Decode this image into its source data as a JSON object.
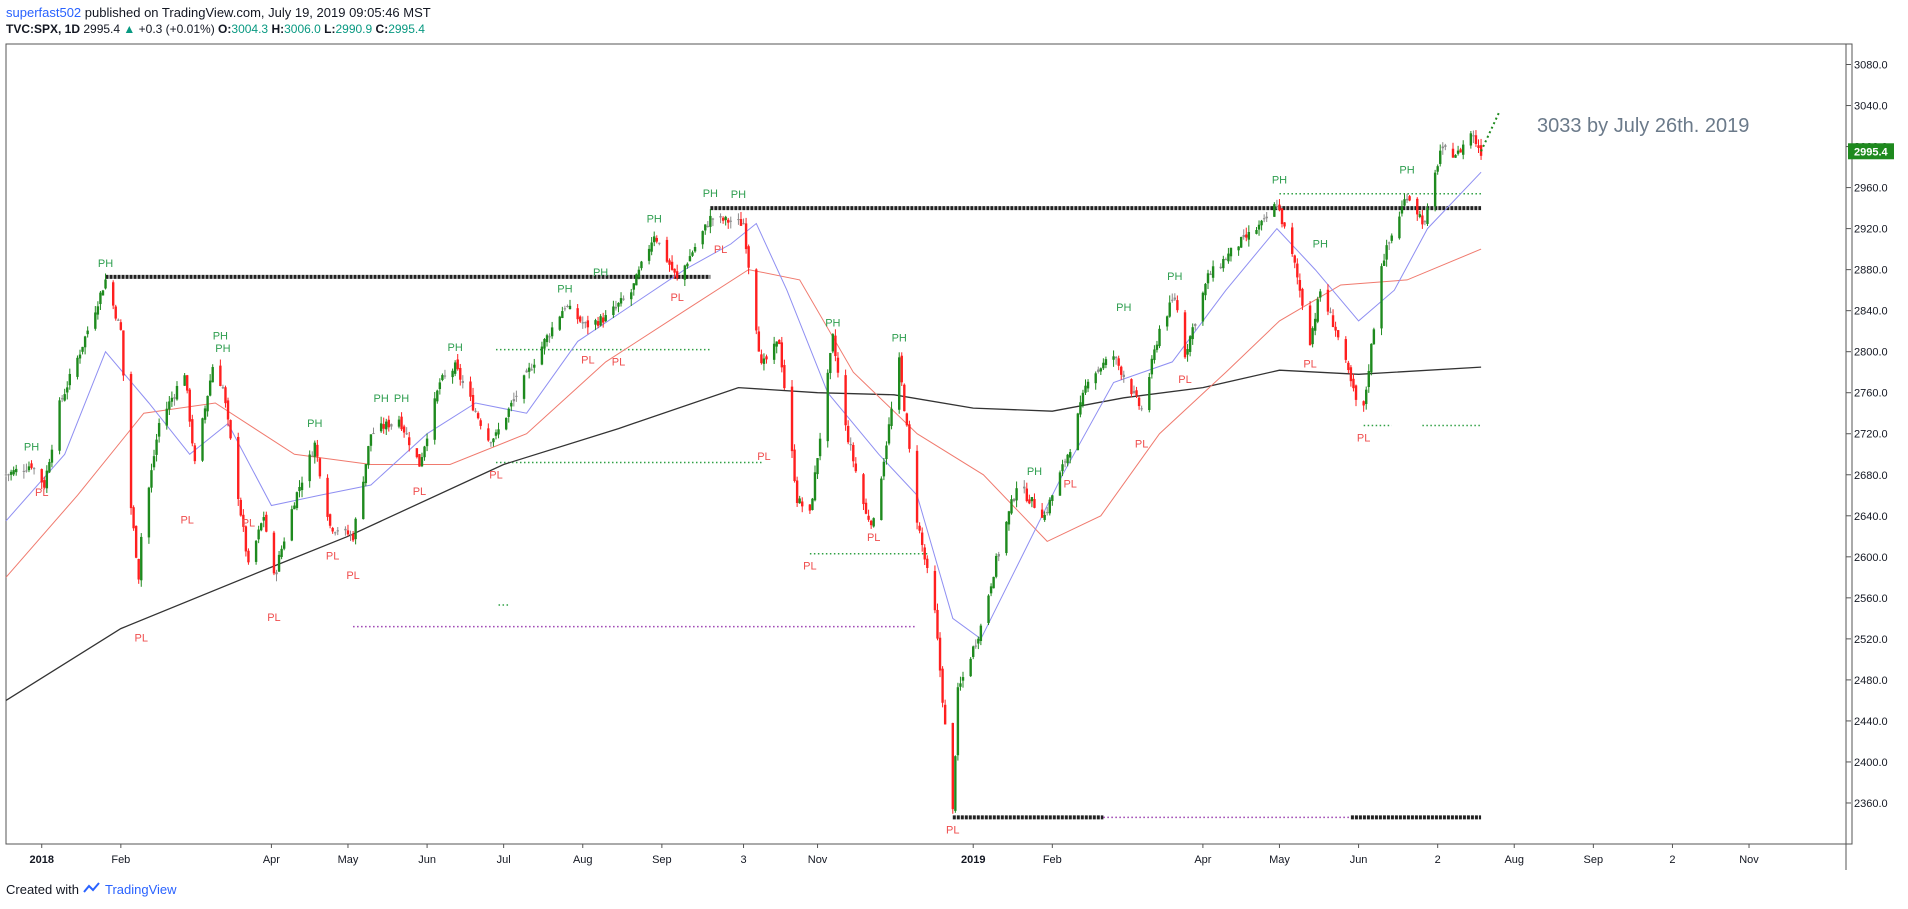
{
  "header": {
    "author": "superfast502",
    "published_text": "published on TradingView.com, July 19, 2019 09:05:46 MST",
    "symbol": "TVC:SPX, 1D",
    "last": "2995.4",
    "change": "+0.3 (+0.01%)",
    "o_label": "O:",
    "o_value": "3004.3",
    "h_label": "H:",
    "h_value": "3006.0",
    "l_label": "L:",
    "l_value": "2990.9",
    "c_label": "C:",
    "c_value": "2995.4"
  },
  "footer": {
    "created_with": "Created with",
    "brand": "TradingView"
  },
  "chart_data": {
    "type": "candlestick",
    "title": "",
    "ylim": [
      2320,
      3100
    ],
    "y_ticks": [
      3080.0,
      3040.0,
      3000.0,
      2960.0,
      2920.0,
      2880.0,
      2840.0,
      2800.0,
      2760.0,
      2720.0,
      2680.0,
      2640.0,
      2600.0,
      2560.0,
      2520.0,
      2480.0,
      2440.0,
      2400.0,
      2360.0
    ],
    "x_ticks": [
      {
        "label": "2018",
        "date": "2018-01-01"
      },
      {
        "label": "Feb",
        "date": "2018-02-01"
      },
      {
        "label": "Apr",
        "date": "2018-04-01"
      },
      {
        "label": "May",
        "date": "2018-05-01"
      },
      {
        "label": "Jun",
        "date": "2018-06-01"
      },
      {
        "label": "Jul",
        "date": "2018-07-01"
      },
      {
        "label": "Aug",
        "date": "2018-08-01"
      },
      {
        "label": "Sep",
        "date": "2018-09-01"
      },
      {
        "label": "3",
        "date": "2018-10-03"
      },
      {
        "label": "Nov",
        "date": "2018-11-01"
      },
      {
        "label": "2019",
        "date": "2019-01-01"
      },
      {
        "label": "Feb",
        "date": "2019-02-01"
      },
      {
        "label": "Apr",
        "date": "2019-04-01"
      },
      {
        "label": "May",
        "date": "2019-05-01"
      },
      {
        "label": "Jun",
        "date": "2019-06-01"
      },
      {
        "label": "2",
        "date": "2019-07-02"
      },
      {
        "label": "Aug",
        "date": "2019-08-01"
      },
      {
        "label": "Sep",
        "date": "2019-09-01"
      },
      {
        "label": "2",
        "date": "2019-10-02"
      },
      {
        "label": "Nov",
        "date": "2019-11-01"
      }
    ],
    "last_price_label": "2995.4",
    "annotation": "3033 by July 26th. 2019",
    "colors": {
      "up": "#1e8a1e",
      "down": "#ff1f1f",
      "neutral": "#8c8c8c",
      "ma_fast": "#8f8ff2",
      "ma_mid": "#f07a6e",
      "ma_slow": "#333333",
      "ph": "#2e9e4f",
      "pl": "#ef4d4d",
      "last_badge": "#1e8a1e"
    },
    "pivots": [
      {
        "label": "PH",
        "date": "2017-12-28",
        "value": 2694
      },
      {
        "label": "PL",
        "date": "2018-01-01",
        "value": 2675
      },
      {
        "label": "PH",
        "date": "2018-01-26",
        "value": 2873
      },
      {
        "label": "PL",
        "date": "2018-02-09",
        "value": 2533
      },
      {
        "label": "PL",
        "date": "2018-02-27",
        "value": 2648
      },
      {
        "label": "PH",
        "date": "2018-03-12",
        "value": 2802
      },
      {
        "label": "PL",
        "date": "2018-03-23",
        "value": 2645
      },
      {
        "label": "PH",
        "date": "2018-03-13",
        "value": 2790
      },
      {
        "label": "PL",
        "date": "2018-04-02",
        "value": 2553
      },
      {
        "label": "PH",
        "date": "2018-04-18",
        "value": 2717
      },
      {
        "label": "PL",
        "date": "2018-04-25",
        "value": 2613
      },
      {
        "label": "PL",
        "date": "2018-05-03",
        "value": 2594
      },
      {
        "label": "PH",
        "date": "2018-05-14",
        "value": 2741
      },
      {
        "label": "PH",
        "date": "2018-05-22",
        "value": 2741
      },
      {
        "label": "PL",
        "date": "2018-05-29",
        "value": 2676
      },
      {
        "label": "PH",
        "date": "2018-06-12",
        "value": 2791
      },
      {
        "label": "PL",
        "date": "2018-06-28",
        "value": 2692
      },
      {
        "label": "PH",
        "date": "2018-07-25",
        "value": 2848
      },
      {
        "label": "PL",
        "date": "2018-08-03",
        "value": 2804
      },
      {
        "label": "PH",
        "date": "2018-08-08",
        "value": 2864
      },
      {
        "label": "PL",
        "date": "2018-08-15",
        "value": 2802
      },
      {
        "label": "PH",
        "date": "2018-08-29",
        "value": 2916
      },
      {
        "label": "PL",
        "date": "2018-09-07",
        "value": 2865
      },
      {
        "label": "PH",
        "date": "2018-09-20",
        "value": 2941
      },
      {
        "label": "PL",
        "date": "2018-09-24",
        "value": 2912
      },
      {
        "label": "PH",
        "date": "2018-10-01",
        "value": 2940
      },
      {
        "label": "PL",
        "date": "2018-10-11",
        "value": 2710
      },
      {
        "label": "PH",
        "date": "2018-11-07",
        "value": 2815
      },
      {
        "label": "PL",
        "date": "2018-10-29",
        "value": 2603
      },
      {
        "label": "PL",
        "date": "2018-11-23",
        "value": 2631
      },
      {
        "label": "PH",
        "date": "2018-12-03",
        "value": 2800
      },
      {
        "label": "PL",
        "date": "2018-12-24",
        "value": 2346
      },
      {
        "label": "PH",
        "date": "2019-01-25",
        "value": 2670
      },
      {
        "label": "PL",
        "date": "2019-02-08",
        "value": 2683
      },
      {
        "label": "PH",
        "date": "2019-03-01",
        "value": 2830
      },
      {
        "label": "PL",
        "date": "2019-03-08",
        "value": 2722
      },
      {
        "label": "PH",
        "date": "2019-03-21",
        "value": 2860
      },
      {
        "label": "PL",
        "date": "2019-03-25",
        "value": 2785
      },
      {
        "label": "PH",
        "date": "2019-05-01",
        "value": 2954
      },
      {
        "label": "PL",
        "date": "2019-05-13",
        "value": 2800
      },
      {
        "label": "PH",
        "date": "2019-05-17",
        "value": 2892
      },
      {
        "label": "PL",
        "date": "2019-06-03",
        "value": 2728
      },
      {
        "label": "PH",
        "date": "2019-06-20",
        "value": 2964
      }
    ],
    "levels": [
      {
        "from": "2018-01-26",
        "to": "2018-09-20",
        "value": 2873,
        "style": "black-dots"
      },
      {
        "from": "2018-09-20",
        "to": "2019-07-19",
        "value": 2940,
        "style": "black-dots"
      },
      {
        "from": "2018-12-24",
        "to": "2019-02-21",
        "value": 2346,
        "style": "black-dots"
      },
      {
        "from": "2019-05-29",
        "to": "2019-07-19",
        "value": 2346,
        "style": "black-dots"
      },
      {
        "from": "2019-02-21",
        "to": "2019-05-29",
        "value": 2346,
        "style": "purple-dots"
      },
      {
        "from": "2018-05-03",
        "to": "2018-12-10",
        "value": 2532,
        "style": "purple-dots"
      },
      {
        "from": "2018-06-28",
        "to": "2018-09-20",
        "value": 2802,
        "style": "green-dots"
      },
      {
        "from": "2018-06-28",
        "to": "2018-10-11",
        "value": 2692,
        "style": "green-dots"
      },
      {
        "from": "2018-10-29",
        "to": "2018-12-14",
        "value": 2603,
        "style": "green-dots"
      },
      {
        "from": "2019-05-01",
        "to": "2019-07-19",
        "value": 2954,
        "style": "green-dots"
      },
      {
        "from": "2019-06-03",
        "to": "2019-06-14",
        "value": 2728,
        "style": "green-dots"
      },
      {
        "from": "2019-06-26",
        "to": "2019-07-19",
        "value": 2728,
        "style": "green-dots"
      },
      {
        "from": "2018-06-29",
        "to": "2018-07-03",
        "value": 2553,
        "style": "green-dots"
      }
    ],
    "projection": {
      "from": "2019-07-19",
      "to": "2019-07-26",
      "from_value": 2995.4,
      "to_value": 3033
    },
    "price_path": [
      [
        "2017-12-18",
        2680
      ],
      [
        "2017-12-28",
        2690
      ],
      [
        "2018-01-02",
        2670
      ],
      [
        "2018-01-08",
        2748
      ],
      [
        "2018-01-16",
        2800
      ],
      [
        "2018-01-26",
        2870
      ],
      [
        "2018-02-01",
        2820
      ],
      [
        "2018-02-05",
        2648
      ],
      [
        "2018-02-08",
        2581
      ],
      [
        "2018-02-09",
        2620
      ],
      [
        "2018-02-16",
        2730
      ],
      [
        "2018-02-26",
        2780
      ],
      [
        "2018-03-02",
        2690
      ],
      [
        "2018-03-09",
        2786
      ],
      [
        "2018-03-13",
        2765
      ],
      [
        "2018-03-23",
        2590
      ],
      [
        "2018-03-29",
        2640
      ],
      [
        "2018-04-02",
        2580
      ],
      [
        "2018-04-10",
        2655
      ],
      [
        "2018-04-18",
        2710
      ],
      [
        "2018-04-24",
        2630
      ],
      [
        "2018-05-03",
        2620
      ],
      [
        "2018-05-10",
        2720
      ],
      [
        "2018-05-21",
        2735
      ],
      [
        "2018-05-29",
        2690
      ],
      [
        "2018-06-06",
        2770
      ],
      [
        "2018-06-12",
        2785
      ],
      [
        "2018-06-25",
        2715
      ],
      [
        "2018-06-28",
        2718
      ],
      [
        "2018-07-06",
        2758
      ],
      [
        "2018-07-17",
        2810
      ],
      [
        "2018-07-25",
        2845
      ],
      [
        "2018-08-02",
        2825
      ],
      [
        "2018-08-10",
        2833
      ],
      [
        "2018-08-20",
        2858
      ],
      [
        "2018-08-29",
        2915
      ],
      [
        "2018-09-07",
        2870
      ],
      [
        "2018-09-20",
        2930
      ],
      [
        "2018-10-03",
        2925
      ],
      [
        "2018-10-10",
        2785
      ],
      [
        "2018-10-17",
        2810
      ],
      [
        "2018-10-24",
        2656
      ],
      [
        "2018-10-29",
        2641
      ],
      [
        "2018-11-07",
        2813
      ],
      [
        "2018-11-12",
        2726
      ],
      [
        "2018-11-20",
        2641
      ],
      [
        "2018-11-23",
        2633
      ],
      [
        "2018-12-03",
        2790
      ],
      [
        "2018-12-10",
        2637
      ],
      [
        "2018-12-17",
        2545
      ],
      [
        "2018-12-24",
        2351
      ],
      [
        "2018-12-26",
        2468
      ],
      [
        "2019-01-04",
        2532
      ],
      [
        "2019-01-10",
        2596
      ],
      [
        "2019-01-18",
        2670
      ],
      [
        "2019-01-29",
        2640
      ],
      [
        "2019-02-08",
        2707
      ],
      [
        "2019-02-15",
        2775
      ],
      [
        "2019-02-25",
        2796
      ],
      [
        "2019-03-08",
        2743
      ],
      [
        "2019-03-15",
        2822
      ],
      [
        "2019-03-21",
        2854
      ],
      [
        "2019-03-25",
        2798
      ],
      [
        "2019-04-03",
        2873
      ],
      [
        "2019-04-15",
        2905
      ],
      [
        "2019-04-25",
        2926
      ],
      [
        "2019-04-30",
        2945
      ],
      [
        "2019-05-07",
        2884
      ],
      [
        "2019-05-13",
        2811
      ],
      [
        "2019-05-17",
        2859
      ],
      [
        "2019-05-23",
        2822
      ],
      [
        "2019-05-31",
        2752
      ],
      [
        "2019-06-03",
        2744
      ],
      [
        "2019-06-10",
        2886
      ],
      [
        "2019-06-20",
        2954
      ],
      [
        "2019-06-27",
        2924
      ],
      [
        "2019-07-03",
        2996
      ],
      [
        "2019-07-10",
        2993
      ],
      [
        "2019-07-15",
        3014
      ],
      [
        "2019-07-19",
        2995
      ]
    ],
    "ma_fast_path": [
      [
        "2017-12-18",
        2635
      ],
      [
        "2018-01-10",
        2700
      ],
      [
        "2018-01-26",
        2800
      ],
      [
        "2018-02-12",
        2750
      ],
      [
        "2018-02-28",
        2700
      ],
      [
        "2018-03-15",
        2730
      ],
      [
        "2018-04-01",
        2650
      ],
      [
        "2018-04-20",
        2660
      ],
      [
        "2018-05-10",
        2670
      ],
      [
        "2018-06-01",
        2720
      ],
      [
        "2018-06-20",
        2750
      ],
      [
        "2018-07-10",
        2740
      ],
      [
        "2018-07-30",
        2810
      ],
      [
        "2018-08-20",
        2845
      ],
      [
        "2018-09-10",
        2880
      ],
      [
        "2018-09-28",
        2905
      ],
      [
        "2018-10-08",
        2925
      ],
      [
        "2018-10-20",
        2860
      ],
      [
        "2018-11-05",
        2760
      ],
      [
        "2018-11-25",
        2700
      ],
      [
        "2018-12-10",
        2660
      ],
      [
        "2018-12-24",
        2540
      ],
      [
        "2019-01-04",
        2520
      ],
      [
        "2019-01-18",
        2590
      ],
      [
        "2019-02-05",
        2680
      ],
      [
        "2019-02-25",
        2770
      ],
      [
        "2019-03-20",
        2790
      ],
      [
        "2019-04-10",
        2860
      ],
      [
        "2019-04-30",
        2920
      ],
      [
        "2019-05-15",
        2880
      ],
      [
        "2019-06-01",
        2830
      ],
      [
        "2019-06-15",
        2860
      ],
      [
        "2019-06-28",
        2920
      ],
      [
        "2019-07-19",
        2975
      ]
    ],
    "ma_mid_path": [
      [
        "2017-12-18",
        2580
      ],
      [
        "2018-01-15",
        2660
      ],
      [
        "2018-02-10",
        2740
      ],
      [
        "2018-03-10",
        2750
      ],
      [
        "2018-04-10",
        2700
      ],
      [
        "2018-05-10",
        2690
      ],
      [
        "2018-06-10",
        2690
      ],
      [
        "2018-07-10",
        2720
      ],
      [
        "2018-08-10",
        2790
      ],
      [
        "2018-09-10",
        2840
      ],
      [
        "2018-10-05",
        2880
      ],
      [
        "2018-10-25",
        2870
      ],
      [
        "2018-11-15",
        2780
      ],
      [
        "2018-12-10",
        2720
      ],
      [
        "2019-01-05",
        2680
      ],
      [
        "2019-01-30",
        2615
      ],
      [
        "2019-02-20",
        2640
      ],
      [
        "2019-03-15",
        2720
      ],
      [
        "2019-04-10",
        2780
      ],
      [
        "2019-05-01",
        2830
      ],
      [
        "2019-05-25",
        2865
      ],
      [
        "2019-06-20",
        2870
      ],
      [
        "2019-07-19",
        2900
      ]
    ],
    "ma_slow_path": [
      [
        "2017-12-18",
        2460
      ],
      [
        "2018-02-01",
        2530
      ],
      [
        "2018-04-01",
        2590
      ],
      [
        "2018-05-01",
        2620
      ],
      [
        "2018-07-01",
        2690
      ],
      [
        "2018-08-15",
        2725
      ],
      [
        "2018-10-01",
        2765
      ],
      [
        "2018-11-01",
        2760
      ],
      [
        "2018-12-01",
        2758
      ],
      [
        "2019-01-01",
        2745
      ],
      [
        "2019-02-01",
        2742
      ],
      [
        "2019-03-01",
        2755
      ],
      [
        "2019-04-01",
        2765
      ],
      [
        "2019-05-01",
        2782
      ],
      [
        "2019-06-01",
        2778
      ],
      [
        "2019-07-19",
        2785
      ]
    ]
  }
}
